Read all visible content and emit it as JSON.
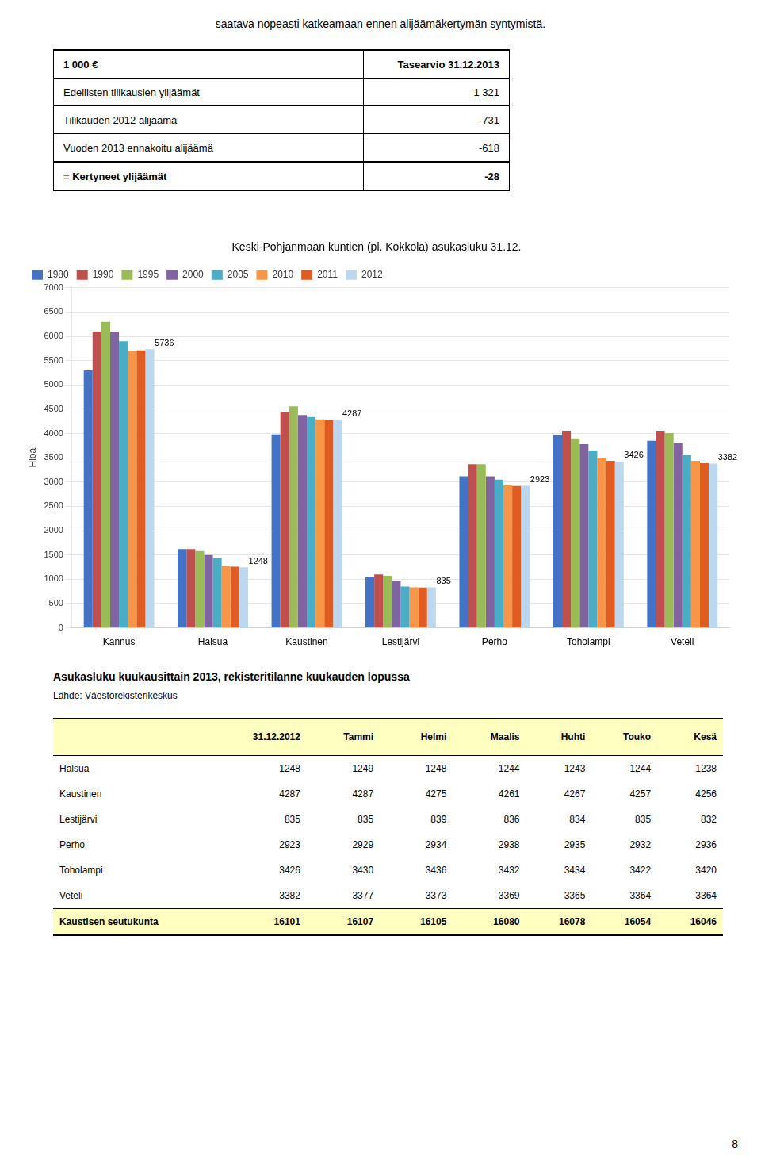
{
  "chart_data": {
    "type": "bar",
    "title": "Keski-Pohjanmaan kuntien (pl. Kokkola) asukasluku 31.12.",
    "y_label": "Hlöä",
    "categories": [
      "Kannus",
      "Halsua",
      "Kaustinen",
      "Lestijärvi",
      "Perho",
      "Toholampi",
      "Veteli"
    ],
    "series": [
      {
        "name": "1980",
        "color": "#4472C4",
        "values": [
          5300,
          1620,
          3980,
          1040,
          3120,
          3970,
          3850
        ]
      },
      {
        "name": "1990",
        "color": "#C0504D",
        "values": [
          6100,
          1620,
          4450,
          1100,
          3370,
          4060,
          4060
        ]
      },
      {
        "name": "1995",
        "color": "#9BBB59",
        "values": [
          6300,
          1580,
          4560,
          1070,
          3370,
          3900,
          4010
        ]
      },
      {
        "name": "2000",
        "color": "#8064A2",
        "values": [
          6100,
          1500,
          4380,
          970,
          3120,
          3780,
          3800
        ]
      },
      {
        "name": "2005",
        "color": "#4BACC6",
        "values": [
          5900,
          1430,
          4340,
          850,
          3050,
          3650,
          3570
        ]
      },
      {
        "name": "2010",
        "color": "#F79646",
        "values": [
          5700,
          1270,
          4290,
          835,
          2930,
          3490,
          3440
        ]
      },
      {
        "name": "2011",
        "color": "#E05C20",
        "values": [
          5710,
          1260,
          4270,
          830,
          2920,
          3440,
          3390
        ]
      },
      {
        "name": "2012",
        "color": "#BDD7EE",
        "values": [
          5736,
          1248,
          4287,
          835,
          2923,
          3426,
          3382
        ]
      }
    ],
    "annotations": [
      {
        "x": "Kannus",
        "y": 5736,
        "text": "5736"
      },
      {
        "x": "Halsua",
        "y": 1248,
        "text": "1248"
      },
      {
        "x": "Kaustinen",
        "y": 4287,
        "text": "4287"
      },
      {
        "x": "Lestijärvi",
        "y": 835,
        "text": "835"
      },
      {
        "x": "Perho",
        "y": 2923,
        "text": "2923"
      },
      {
        "x": "Toholampi",
        "y": 3426,
        "text": "3426"
      },
      {
        "x": "Veteli",
        "y": 3382,
        "text": "3382"
      }
    ],
    "ylim": [
      0,
      7000
    ],
    "yticks": [
      0,
      500,
      1000,
      1500,
      2000,
      2500,
      3000,
      3500,
      4000,
      4500,
      5000,
      5500,
      6000,
      6500,
      7000
    ],
    "grid": true,
    "legend": "upper left"
  },
  "top_text": "saatava nopeasti katkeamaan ennen alijäämäkertymän syntymistä.",
  "table1": {
    "headers": [
      "1 000 €",
      "Tasearvio 31.12.2013"
    ],
    "rows": [
      [
        "Edellisten tilikausien ylijäämät",
        "1 321"
      ],
      [
        "Tilikauden 2012 alijäämä",
        "-731"
      ],
      [
        "Vuoden 2013 ennakoitu alijäämä",
        "-618"
      ],
      [
        "= Kertyneet ylijäämät",
        "-28"
      ]
    ]
  },
  "pop_table": {
    "title": "Asukasluku kuukausittain 2013, rekisteritilanne kuukauden lopussa",
    "source": "Lähde: Väestörekisterikeskus",
    "headers": [
      "31.12.2012",
      "Tammi",
      "Helmi",
      "Maalis",
      "Huhti",
      "Touko",
      "Kesä"
    ],
    "rows": [
      [
        "Halsua",
        1248,
        1249,
        1248,
        1244,
        1243,
        1244,
        1238
      ],
      [
        "Kaustinen",
        4287,
        4287,
        4275,
        4261,
        4267,
        4257,
        4256
      ],
      [
        "Lestijärvi",
        835,
        835,
        839,
        836,
        834,
        835,
        832
      ],
      [
        "Perho",
        2923,
        2929,
        2934,
        2938,
        2935,
        2932,
        2936
      ],
      [
        "Toholampi",
        3426,
        3430,
        3436,
        3432,
        3434,
        3422,
        3420
      ],
      [
        "Veteli",
        3382,
        3377,
        3373,
        3369,
        3365,
        3364,
        3364
      ]
    ],
    "total_row": [
      "Kaustisen seutukunta",
      16101,
      16107,
      16105,
      16080,
      16078,
      16054,
      16046
    ],
    "header_bg": "#FFFFC0",
    "total_bg": "#FFFFC0"
  },
  "page_number": "8"
}
